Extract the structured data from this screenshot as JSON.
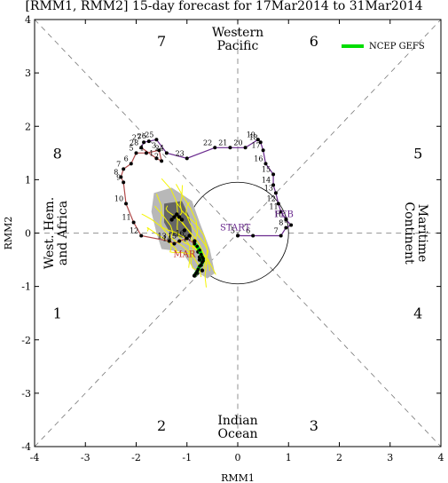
{
  "title": "[RMM1, RMM2] 15-day forecast for 17Mar2014 to 31Mar2014",
  "colors": {
    "observed_line": "#6a2a8e",
    "earlier_line": "#b04a4a",
    "ensemble_members": "#f5f500",
    "ensemble_spread_outer": "#b8b8b8",
    "ensemble_spread_inner": "#666666",
    "ensemble_mean": "#00dd00",
    "start_label": "#6a2a8e",
    "feb_label": "#6a2a8e",
    "mar_label": "#c0302a"
  },
  "chart_data": {
    "type": "scatter",
    "title": "[RMM1, RMM2] 15-day forecast for 17Mar2014 to 31Mar2014",
    "xlabel": "RMM1",
    "ylabel": "RMM2",
    "xlim": [
      -4,
      4
    ],
    "ylim": [
      -4,
      4
    ],
    "x_ticks": [
      "-4",
      "-3",
      "-2",
      "-1",
      "0",
      "1",
      "2",
      "3",
      "4"
    ],
    "y_ticks": [
      "-4",
      "-3",
      "-2",
      "-1",
      "0",
      "1",
      "2",
      "3",
      "4"
    ],
    "grid": false,
    "legend": {
      "placement": "top-right",
      "entries": [
        "NCEP GEFS"
      ]
    },
    "phase_labels": [
      {
        "text": "1",
        "x": -3.55,
        "y": -1.5
      },
      {
        "text": "2",
        "x": -1.5,
        "y": -3.6
      },
      {
        "text": "3",
        "x": 1.5,
        "y": -3.6
      },
      {
        "text": "4",
        "x": 3.55,
        "y": -1.5
      },
      {
        "text": "5",
        "x": 3.55,
        "y": 1.5
      },
      {
        "text": "6",
        "x": 1.5,
        "y": 3.6
      },
      {
        "text": "7",
        "x": -1.5,
        "y": 3.6
      },
      {
        "text": "8",
        "x": -3.55,
        "y": 1.5
      }
    ],
    "region_labels": {
      "top": [
        "Western",
        "Pacific"
      ],
      "bottom": [
        "Indian",
        "Ocean"
      ],
      "left": [
        "West. Hem.",
        "and Africa"
      ],
      "right": [
        "Maritime",
        "Continent"
      ]
    },
    "annotations": {
      "start": "START",
      "feb": "FEB",
      "mar": "MAR"
    },
    "observed_early": {
      "labels": [
        "5",
        "6",
        "7",
        "8",
        "9",
        "10",
        "11",
        "12",
        "13",
        "14",
        "15",
        "16",
        "17",
        "18",
        "19",
        "20",
        "21",
        "22",
        "23",
        "24",
        "25",
        "26",
        "27",
        "28"
      ],
      "x": [
        0.0,
        0.3,
        0.85,
        0.95,
        1.05,
        0.95,
        0.85,
        0.8,
        0.75,
        0.7,
        0.7,
        0.55,
        0.5,
        0.45,
        0.4,
        0.15,
        -0.15,
        -0.45,
        -1.0,
        -1.4,
        -1.6,
        -1.75,
        -1.85,
        -1.9
      ],
      "y": [
        -0.05,
        -0.05,
        -0.05,
        0.1,
        0.15,
        0.25,
        0.4,
        0.55,
        0.75,
        0.9,
        1.1,
        1.3,
        1.55,
        1.7,
        1.75,
        1.6,
        1.6,
        1.6,
        1.4,
        1.5,
        1.75,
        1.72,
        1.7,
        1.6
      ]
    },
    "observed_march": {
      "labels": [
        "1",
        "2",
        "3",
        "4",
        "5",
        "6",
        "7",
        "8",
        "9",
        "10",
        "11",
        "12",
        "13",
        "14",
        "15",
        "16",
        "17"
      ],
      "x": [
        -1.6,
        -1.5,
        -1.55,
        -1.8,
        -2.0,
        -2.1,
        -2.25,
        -2.3,
        -2.25,
        -2.2,
        -2.05,
        -1.9,
        -1.35,
        -1.25,
        -1.15,
        -1.0,
        -0.85
      ],
      "y": [
        1.4,
        1.35,
        1.55,
        1.5,
        1.5,
        1.3,
        1.2,
        1.05,
        0.95,
        0.55,
        0.2,
        -0.05,
        -0.15,
        -0.2,
        -0.15,
        -0.1,
        -0.2
      ]
    },
    "ensemble_mean": {
      "series_name": "NCEP GEFS",
      "x": [
        -0.85,
        -0.8,
        -0.75,
        -0.72,
        -0.7,
        -0.68,
        -0.68,
        -0.7,
        -0.72,
        -0.75,
        -0.78,
        -0.8,
        -0.82,
        -0.84,
        -0.86
      ],
      "y": [
        -0.2,
        -0.25,
        -0.32,
        -0.4,
        -0.45,
        -0.48,
        -0.52,
        -0.55,
        -0.6,
        -0.62,
        -0.68,
        -0.72,
        -0.75,
        -0.78,
        -0.8
      ]
    },
    "ensemble_forecast_points": {
      "x": [
        -1.3,
        -1.25,
        -1.2,
        -1.15,
        -1.1,
        -1.05,
        -0.95,
        -0.85,
        -0.78,
        -0.75,
        -0.72,
        -0.7,
        -0.8,
        -0.85,
        -0.75
      ],
      "y": [
        0.25,
        0.3,
        0.35,
        0.3,
        0.25,
        0.05,
        -0.05,
        -0.15,
        -0.35,
        -0.5,
        -0.6,
        -0.7,
        -0.75,
        -0.8,
        -0.45
      ]
    }
  }
}
